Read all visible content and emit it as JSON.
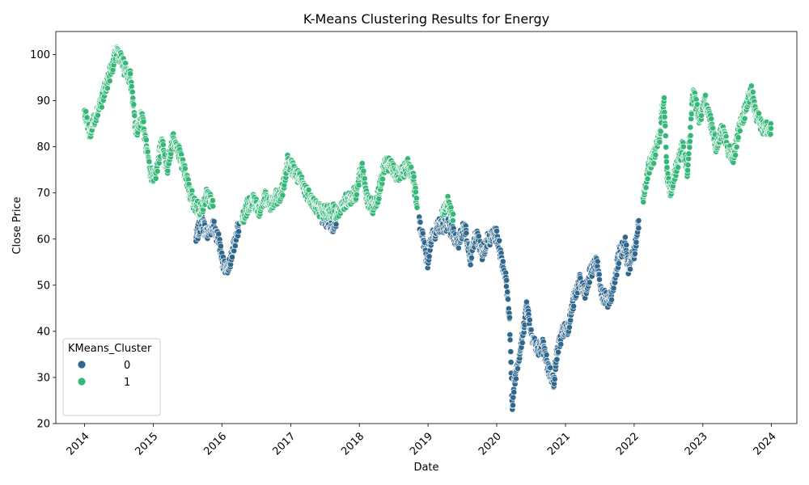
{
  "chart_data": {
    "type": "scatter",
    "title": "K-Means Clustering Results for Energy",
    "xlabel": "Date",
    "ylabel": "Close Price",
    "xlim": [
      "2013-08-01",
      "2024-05-15"
    ],
    "ylim": [
      20,
      105
    ],
    "yticks": [
      20,
      30,
      40,
      50,
      60,
      70,
      80,
      90,
      100
    ],
    "xticks": [
      "2014",
      "2015",
      "2016",
      "2017",
      "2018",
      "2019",
      "2020",
      "2021",
      "2022",
      "2023",
      "2024"
    ],
    "grid": false,
    "legend": {
      "title": "KMeans_Cluster",
      "placement": "lower-left",
      "entries": [
        {
          "label": "0",
          "color": "#30678d"
        },
        {
          "label": "1",
          "color": "#35b778"
        }
      ]
    },
    "series": [
      {
        "name": "0",
        "color": "#30678d",
        "anchors": [
          [
            "2015-08-15",
            60
          ],
          [
            "2015-09-15",
            64
          ],
          [
            "2015-10-15",
            61
          ],
          [
            "2015-11-15",
            63
          ],
          [
            "2015-12-15",
            60
          ],
          [
            "2016-01-10",
            54
          ],
          [
            "2016-02-01",
            53
          ],
          [
            "2016-03-01",
            58
          ],
          [
            "2016-04-01",
            63
          ],
          [
            "2017-06-15",
            65
          ],
          [
            "2017-08-15",
            63
          ],
          [
            "2017-09-01",
            64
          ],
          [
            "2018-11-15",
            64
          ],
          [
            "2018-12-10",
            59
          ],
          [
            "2018-12-26",
            54
          ],
          [
            "2019-01-15",
            60
          ],
          [
            "2019-03-01",
            63
          ],
          [
            "2019-04-15",
            63
          ],
          [
            "2019-05-15",
            61
          ],
          [
            "2019-06-10",
            59
          ],
          [
            "2019-07-15",
            63
          ],
          [
            "2019-08-15",
            56
          ],
          [
            "2019-09-15",
            61
          ],
          [
            "2019-10-15",
            57
          ],
          [
            "2019-11-15",
            60
          ],
          [
            "2020-01-01",
            61
          ],
          [
            "2020-02-01",
            55
          ],
          [
            "2020-02-20",
            51
          ],
          [
            "2020-03-10",
            42
          ],
          [
            "2020-03-23",
            24
          ],
          [
            "2020-04-15",
            32
          ],
          [
            "2020-05-15",
            38
          ],
          [
            "2020-06-08",
            46
          ],
          [
            "2020-07-01",
            40
          ],
          [
            "2020-08-01",
            36
          ],
          [
            "2020-09-01",
            37
          ],
          [
            "2020-10-01",
            32
          ],
          [
            "2020-10-30",
            29
          ],
          [
            "2020-11-15",
            35
          ],
          [
            "2020-12-15",
            40
          ],
          [
            "2021-01-15",
            41
          ],
          [
            "2021-02-15",
            47
          ],
          [
            "2021-03-15",
            51
          ],
          [
            "2021-04-15",
            48
          ],
          [
            "2021-05-15",
            53
          ],
          [
            "2021-06-15",
            55
          ],
          [
            "2021-07-15",
            48
          ],
          [
            "2021-08-20",
            46
          ],
          [
            "2021-09-15",
            50
          ],
          [
            "2021-10-15",
            57
          ],
          [
            "2021-11-15",
            59
          ],
          [
            "2021-12-01",
            54
          ],
          [
            "2022-01-01",
            57
          ],
          [
            "2022-01-25",
            64
          ]
        ]
      },
      {
        "name": "1",
        "color": "#35b778",
        "anchors": [
          [
            "2014-01-01",
            87
          ],
          [
            "2014-02-01",
            83
          ],
          [
            "2014-03-01",
            87
          ],
          [
            "2014-04-01",
            90
          ],
          [
            "2014-05-01",
            94
          ],
          [
            "2014-06-23",
            101
          ],
          [
            "2014-08-01",
            97
          ],
          [
            "2014-09-01",
            95
          ],
          [
            "2014-10-01",
            83
          ],
          [
            "2014-11-01",
            87
          ],
          [
            "2014-12-15",
            74
          ],
          [
            "2015-01-15",
            74
          ],
          [
            "2015-02-15",
            81
          ],
          [
            "2015-03-15",
            75
          ],
          [
            "2015-04-15",
            82
          ],
          [
            "2015-05-15",
            79
          ],
          [
            "2015-06-15",
            75
          ],
          [
            "2015-07-15",
            70
          ],
          [
            "2015-08-15",
            67
          ],
          [
            "2015-09-15",
            66
          ],
          [
            "2015-10-15",
            70
          ],
          [
            "2015-11-15",
            67
          ],
          [
            "2016-04-15",
            64
          ],
          [
            "2016-05-15",
            67
          ],
          [
            "2016-06-15",
            69
          ],
          [
            "2016-07-15",
            66
          ],
          [
            "2016-08-15",
            69
          ],
          [
            "2016-09-15",
            67
          ],
          [
            "2016-10-15",
            69
          ],
          [
            "2016-11-15",
            70
          ],
          [
            "2016-12-15",
            77
          ],
          [
            "2017-01-15",
            75
          ],
          [
            "2017-02-15",
            73
          ],
          [
            "2017-03-15",
            71
          ],
          [
            "2017-04-15",
            69
          ],
          [
            "2017-05-15",
            67
          ],
          [
            "2017-06-15",
            66
          ],
          [
            "2017-09-15",
            66
          ],
          [
            "2017-10-15",
            68
          ],
          [
            "2017-11-15",
            69
          ],
          [
            "2017-12-15",
            70
          ],
          [
            "2018-01-15",
            76
          ],
          [
            "2018-02-15",
            68
          ],
          [
            "2018-03-15",
            67
          ],
          [
            "2018-04-15",
            70
          ],
          [
            "2018-05-15",
            76
          ],
          [
            "2018-06-15",
            76
          ],
          [
            "2018-07-15",
            74
          ],
          [
            "2018-08-15",
            74
          ],
          [
            "2018-09-15",
            76
          ],
          [
            "2018-10-15",
            73
          ],
          [
            "2018-11-05",
            67
          ],
          [
            "2019-03-15",
            66
          ],
          [
            "2019-04-15",
            68
          ],
          [
            "2019-05-15",
            64
          ],
          [
            "2022-02-15",
            68
          ],
          [
            "2022-03-15",
            75
          ],
          [
            "2022-04-15",
            78
          ],
          [
            "2022-05-15",
            82
          ],
          [
            "2022-06-08",
            91
          ],
          [
            "2022-06-25",
            74
          ],
          [
            "2022-07-15",
            70
          ],
          [
            "2022-08-15",
            76
          ],
          [
            "2022-09-15",
            80
          ],
          [
            "2022-10-10",
            75
          ],
          [
            "2022-10-25",
            82
          ],
          [
            "2022-11-10",
            92
          ],
          [
            "2022-12-15",
            86
          ],
          [
            "2023-01-15",
            90
          ],
          [
            "2023-02-15",
            85
          ],
          [
            "2023-03-15",
            80
          ],
          [
            "2023-04-15",
            84
          ],
          [
            "2023-05-15",
            79
          ],
          [
            "2023-06-15",
            78
          ],
          [
            "2023-07-15",
            84
          ],
          [
            "2023-08-15",
            88
          ],
          [
            "2023-09-15",
            92
          ],
          [
            "2023-10-15",
            87
          ],
          [
            "2023-11-15",
            84
          ],
          [
            "2023-12-29",
            84
          ]
        ]
      }
    ]
  }
}
